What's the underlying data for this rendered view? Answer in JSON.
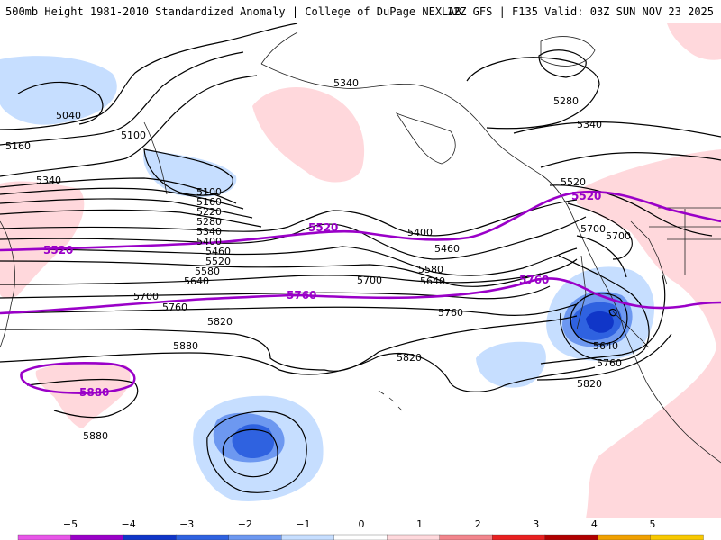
{
  "header": {
    "title_left": "500mb Height 1981-2010 Standardized Anomaly | College of DuPage NEXLAB",
    "title_right": "12Z GFS | F135 Valid: 03Z SUN NOV 23 2025"
  },
  "contours": {
    "black_labels": [
      "5040",
      "5100",
      "5160",
      "5340",
      "5100",
      "5160",
      "5220",
      "5280",
      "5340",
      "5400",
      "5460",
      "5520",
      "5580",
      "5640",
      "5700",
      "5760",
      "5820",
      "5880",
      "5880",
      "5340",
      "5280",
      "5340",
      "5520",
      "5400",
      "5460",
      "5580",
      "5640",
      "5700",
      "5760",
      "5820",
      "5700",
      "5640",
      "5760",
      "5820",
      "5700"
    ],
    "purple_labels": [
      "5520",
      "5520",
      "5760",
      "5760",
      "5880"
    ]
  },
  "colorbar": {
    "tick_labels": [
      "−5",
      "−4",
      "−3",
      "−2",
      "−1",
      "0",
      "1",
      "2",
      "3",
      "4",
      "5"
    ],
    "colors": [
      "#e855e8",
      "#9a00c8",
      "#1036c8",
      "#2f62e0",
      "#6d98f0",
      "#c6deff",
      "#ffffff",
      "#ffd8dc",
      "#f2858c",
      "#e82020",
      "#b00000",
      "#f0a000",
      "#f8c800"
    ]
  }
}
